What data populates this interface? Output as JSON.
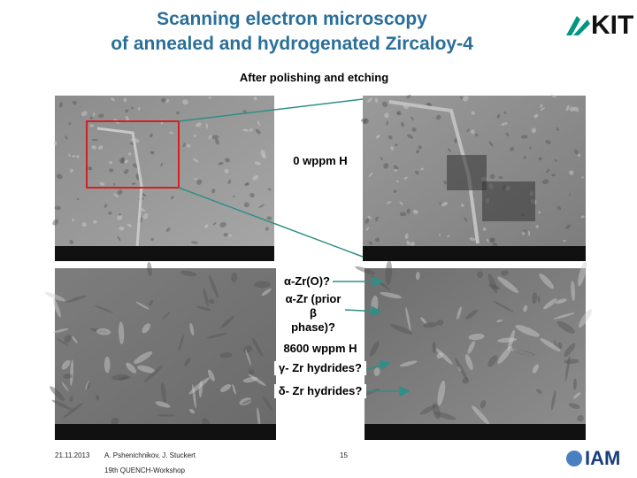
{
  "header": {
    "title": [
      "Scanning electron microscopy",
      "of annealed and hydrogenated Zircaloy-4"
    ],
    "subtitle": "After polishing and etching"
  },
  "labels": [
    "0 wppm H",
    "α-Zr(O)?",
    [
      "α-Zr (prior β",
      "phase)?"
    ],
    "8600 wppm H",
    "γ- Zr hydrides?",
    "δ- Zr hydrides?"
  ],
  "footer": {
    "date": "21.11.2013",
    "authors": "A. Pshenichnikov, J. Stuckert",
    "event": "19th QUENCH-Workshop",
    "page": "15"
  },
  "logos": {
    "kit": "KIT",
    "iam": "IAM"
  }
}
